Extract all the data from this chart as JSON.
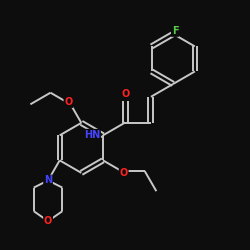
{
  "bg_color": "#0d0d0d",
  "bond_color": "#c8c8c8",
  "atom_color_N": "#4444ff",
  "atom_color_O": "#ff2222",
  "atom_color_F": "#55cc44",
  "bond_width": 1.4,
  "figsize": [
    2.5,
    2.5
  ],
  "dpi": 100,
  "xlim": [
    -2.8,
    3.2
  ],
  "ylim": [
    -3.8,
    3.2
  ]
}
